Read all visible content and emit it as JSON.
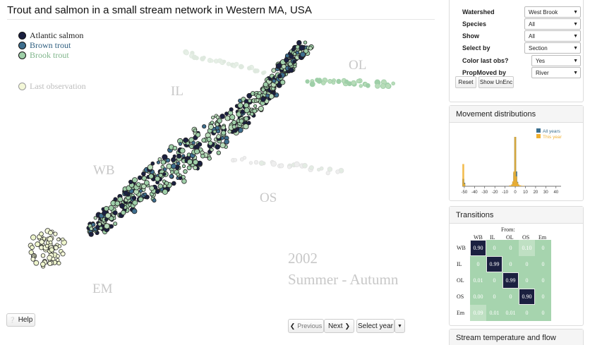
{
  "title": "Trout and salmon in a small stream network in Western MA, USA",
  "legend": {
    "items": [
      {
        "label": "Atlantic salmon",
        "color": "#1b2040"
      },
      {
        "label": "Brown trout",
        "color": "#3e6e8e"
      },
      {
        "label": "Brook trout",
        "color": "#9fcfa8"
      }
    ],
    "last_obs_label": "Last observation"
  },
  "regions": {
    "wb": "WB",
    "il": "IL",
    "ol": "OL",
    "os": "OS",
    "em": "EM"
  },
  "season": {
    "year": "2002",
    "period": "Summer - Autumn"
  },
  "buttons": {
    "help": "Help",
    "previous": "Previous",
    "next": "Next",
    "select_year": "Select year"
  },
  "controls": {
    "watershed": {
      "label": "Watershed",
      "value": "West Brook"
    },
    "species": {
      "label": "Species",
      "value": "All"
    },
    "show": {
      "label": "Show",
      "value": "All"
    },
    "select_by": {
      "label": "Select by",
      "value": "Section"
    },
    "color_last_obs": {
      "label": "Color last obs?",
      "value": "Yes"
    },
    "prop_moved_by": {
      "label": "PropMoved by",
      "value": "River"
    },
    "reset": "Reset",
    "show_unenc": "Show UnEnc"
  },
  "movement": {
    "title": "Movement distributions",
    "legend": [
      {
        "label": "All years",
        "color": "#3a6f8f"
      },
      {
        "label": "This year",
        "color": "#f0b030"
      }
    ],
    "x_ticks": [
      "-50",
      "-40",
      "-30",
      "-20",
      "-10",
      "0",
      "10",
      "20",
      "30",
      "40"
    ]
  },
  "transitions": {
    "title": "Transitions",
    "from_label": "From:",
    "cols": [
      "WB",
      "IL",
      "OL",
      "OS",
      "Em"
    ],
    "rows": [
      "WB",
      "IL",
      "OL",
      "OS",
      "Em"
    ],
    "matrix": [
      [
        "0.90",
        "0",
        "0",
        "0.10",
        "0"
      ],
      [
        "0",
        "0.99",
        "0",
        "0",
        "0"
      ],
      [
        "0.01",
        "0",
        "0.99",
        "0",
        "0"
      ],
      [
        "0.00",
        "0",
        "0",
        "0.90",
        "0"
      ],
      [
        "0.09",
        "0.01",
        "0.01",
        "0",
        "0"
      ]
    ]
  },
  "stream": {
    "title": "Stream temperature and flow"
  },
  "chart_data": {
    "type": "bar",
    "title": "Movement distributions",
    "xlim": [
      -52,
      45
    ],
    "series": [
      {
        "name": "All years",
        "x": [
          -51,
          -50,
          -3,
          -2,
          -1,
          0,
          1,
          2,
          3
        ],
        "values": [
          0.15,
          0.07,
          0.03,
          0.08,
          0.28,
          1.0,
          0.3,
          0.09,
          0.03
        ]
      },
      {
        "name": "This year",
        "x": [
          -51,
          -50,
          -5,
          -3,
          -2,
          -1,
          0,
          1,
          2,
          3,
          5,
          8
        ],
        "values": [
          0.45,
          0.05,
          0.02,
          0.04,
          0.1,
          0.3,
          1.0,
          0.2,
          0.08,
          0.04,
          0.02,
          0.01
        ]
      }
    ]
  }
}
